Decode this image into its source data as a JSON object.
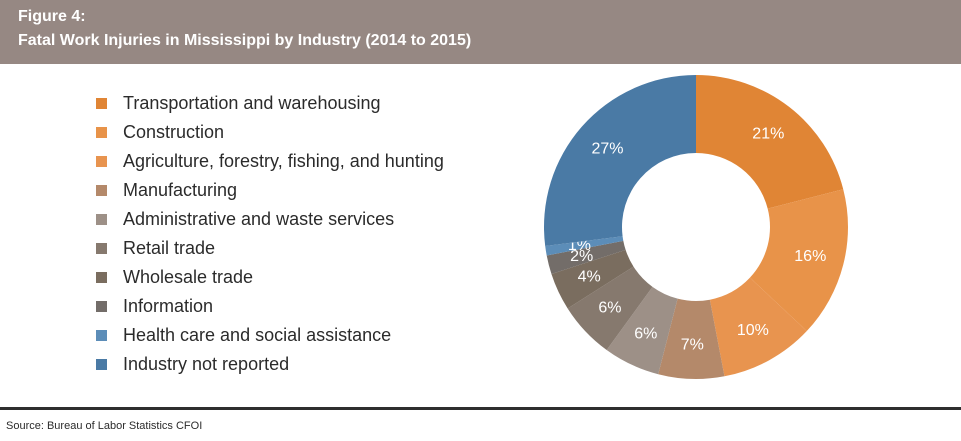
{
  "header": {
    "figure_label": "Figure 4:",
    "title": "Fatal Work Injuries in Mississippi by Industry (2014 to 2015)"
  },
  "footer": {
    "source": "Source: Bureau of Labor Statistics CFOI"
  },
  "chart_data": {
    "type": "pie",
    "title": "Fatal Work Injuries in Mississippi by Industry (2014 to 2015)",
    "legend_position": "left",
    "categories": [
      "Transportation and warehousing",
      "Construction",
      "Agriculture, forestry, fishing, and hunting",
      "Manufacturing",
      "Administrative and waste services",
      "Retail trade",
      "Wholesale trade",
      "Information",
      "Health care and social assistance",
      "Industry not reported"
    ],
    "values": [
      21,
      16,
      10,
      7,
      6,
      6,
      4,
      2,
      1,
      27
    ],
    "labels": [
      "21%",
      "16%",
      "10%",
      "7%",
      "6%",
      "6%",
      "4%",
      "2%",
      "1%",
      "27%"
    ],
    "colors": [
      "#e08535",
      "#e89349",
      "#e8944f",
      "#b4896a",
      "#9d9087",
      "#86796e",
      "#7a6d5f",
      "#736d69",
      "#5c8db8",
      "#4a7aa5"
    ]
  }
}
